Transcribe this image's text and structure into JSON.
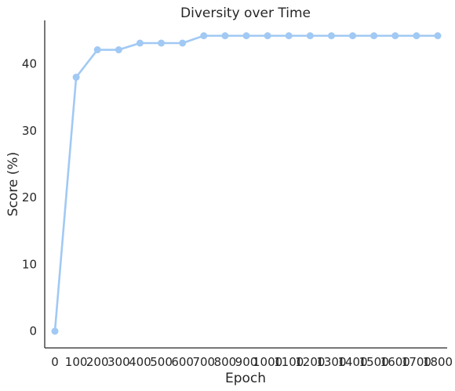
{
  "chart_data": {
    "type": "line",
    "title": "Diversity over Time",
    "xlabel": "Epoch",
    "ylabel": "Score (%)",
    "categories": [
      "0",
      "100",
      "200",
      "300",
      "400",
      "500",
      "600",
      "700",
      "800",
      "900",
      "1000",
      "1100",
      "1200",
      "1300",
      "1400",
      "1500",
      "1600",
      "1700",
      "1800"
    ],
    "series": [
      {
        "values": [
          0,
          38,
          42.1,
          42.1,
          43.1,
          43.1,
          43.1,
          44.2,
          44.2,
          44.2,
          44.2,
          44.2,
          44.2,
          44.2,
          44.2,
          44.2,
          44.2,
          44.2,
          44.2
        ],
        "color": "#a1c9f4"
      }
    ],
    "yticks": [
      0,
      10,
      20,
      30,
      40
    ],
    "ylim": [
      -2.5,
      46.5
    ],
    "grid": false,
    "markers": true
  }
}
